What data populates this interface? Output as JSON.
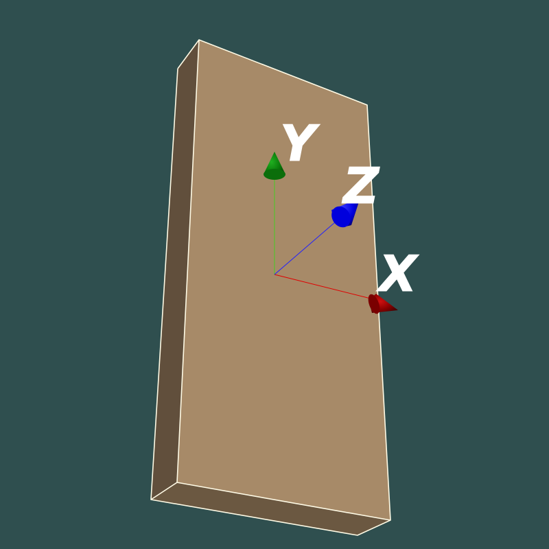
{
  "scene": {
    "background_color": "#2f4f4f",
    "object": {
      "type": "box",
      "front_face_color": "#a78a68",
      "left_face_color": "#614f3c",
      "bottom_face_color": "#6b5841",
      "edge_color": "#fffbe6"
    },
    "axes": {
      "x": {
        "label": "X",
        "color": "#cc0000"
      },
      "y": {
        "label": "Y",
        "color": "#008800"
      },
      "z": {
        "label": "Z",
        "color": "#0000ff"
      }
    }
  }
}
